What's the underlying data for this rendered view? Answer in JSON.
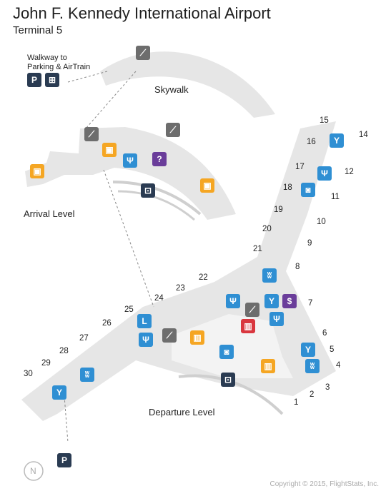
{
  "header": {
    "title": "John F. Kennedy International Airport",
    "subtitle": "Terminal 5"
  },
  "labels": {
    "walkway": "Walkway to\nParking & AirTrain",
    "skywalk": "Skywalk",
    "arrival": "Arrival Level",
    "departure": "Departure Level",
    "copyright": "Copyright © 2015, FlightStats, Inc.",
    "north": "N",
    "lounge_letter": "L",
    "parking_letter": "P"
  },
  "gates": [
    "1",
    "2",
    "3",
    "4",
    "5",
    "6",
    "7",
    "8",
    "9",
    "10",
    "11",
    "12",
    "14",
    "15",
    "16",
    "17",
    "18",
    "19",
    "20",
    "21",
    "22",
    "23",
    "24",
    "25",
    "26",
    "27",
    "28",
    "29",
    "30"
  ],
  "colors": {
    "floor": "#e6e6e6",
    "floor_inner": "#f3f3f3",
    "icon_blue": "#2f8fd3",
    "icon_gray": "#6d6d6d",
    "icon_navy": "#2a3b52",
    "icon_orange": "#f5a623",
    "icon_purple": "#6a3d9a",
    "icon_red": "#d9363e"
  },
  "icons": [
    "parking-icon",
    "train-icon",
    "escalator-icon",
    "baggage-icon",
    "restaurant-icon",
    "information-icon",
    "taxi-icon",
    "bar-icon",
    "coffee-icon",
    "shopping-icon",
    "restroom-icon",
    "lounge-icon",
    "atm-icon",
    "north-icon"
  ]
}
